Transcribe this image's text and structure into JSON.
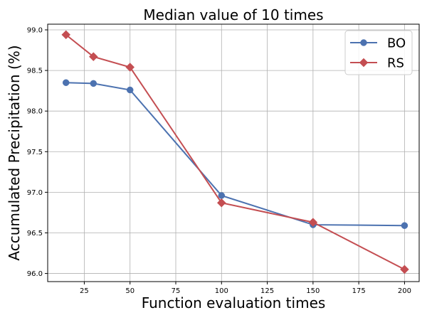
{
  "chart_data": {
    "type": "line",
    "title": "Median value of 10 times",
    "xlabel": "Function evaluation times",
    "ylabel": "Accumulated Precipitation (%)",
    "xlim": [
      5,
      208
    ],
    "ylim": [
      95.9,
      99.07
    ],
    "xticks": [
      25,
      50,
      75,
      100,
      125,
      150,
      175,
      200
    ],
    "yticks": [
      96.0,
      96.5,
      97.0,
      97.5,
      98.0,
      98.5,
      99.0
    ],
    "xtick_labels": [
      "25",
      "50",
      "75",
      "100",
      "125",
      "150",
      "175",
      "200"
    ],
    "ytick_labels": [
      "96.0",
      "96.5",
      "97.0",
      "97.5",
      "98.0",
      "98.5",
      "99.0"
    ],
    "grid": true,
    "legend_position": "top-right",
    "series": [
      {
        "name": "BO",
        "marker": "circle",
        "color": "#4c72b0",
        "x": [
          15,
          30,
          50,
          100,
          150,
          200
        ],
        "y": [
          98.35,
          98.34,
          98.26,
          96.96,
          96.6,
          96.59
        ]
      },
      {
        "name": "RS",
        "marker": "diamond",
        "color": "#c44e52",
        "x": [
          15,
          30,
          50,
          100,
          150,
          200
        ],
        "y": [
          98.94,
          98.67,
          98.54,
          96.87,
          96.63,
          96.05
        ]
      }
    ]
  }
}
